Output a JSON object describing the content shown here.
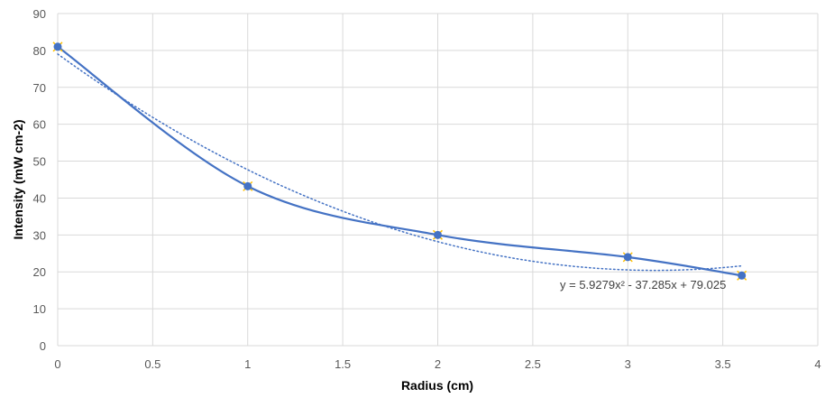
{
  "chart_data": {
    "type": "scatter",
    "xlabel": "Radius (cm)",
    "ylabel": "Intensity (mW cm-2)",
    "xlim": [
      0,
      4
    ],
    "ylim": [
      0,
      90
    ],
    "x_ticks": [
      "0",
      "0.5",
      "1",
      "1.5",
      "2",
      "2.5",
      "3",
      "3.5",
      "4"
    ],
    "y_ticks": [
      "0",
      "10",
      "20",
      "30",
      "40",
      "50",
      "60",
      "70",
      "80",
      "90"
    ],
    "grid": true,
    "series": [
      {
        "points": [
          {
            "x": 0,
            "y": 81
          },
          {
            "x": 1,
            "y": 43.2
          },
          {
            "x": 2,
            "y": 30
          },
          {
            "x": 3,
            "y": 24
          },
          {
            "x": 3.6,
            "y": 19
          }
        ],
        "color": "#4472c4",
        "line": "smooth",
        "marker": "circle"
      }
    ],
    "trendline": {
      "kind": "polynomial-2",
      "coefficients": {
        "a": 5.9279,
        "b": -37.285,
        "c": 79.025
      },
      "x_range": [
        0,
        3.6
      ],
      "color": "#4472c4",
      "style": "dotted",
      "equation_label": "y = 5.9279x² - 37.285x + 79.025"
    },
    "colors": {
      "grid": "#d9d9d9",
      "marker_outline": "#ffc000"
    }
  }
}
